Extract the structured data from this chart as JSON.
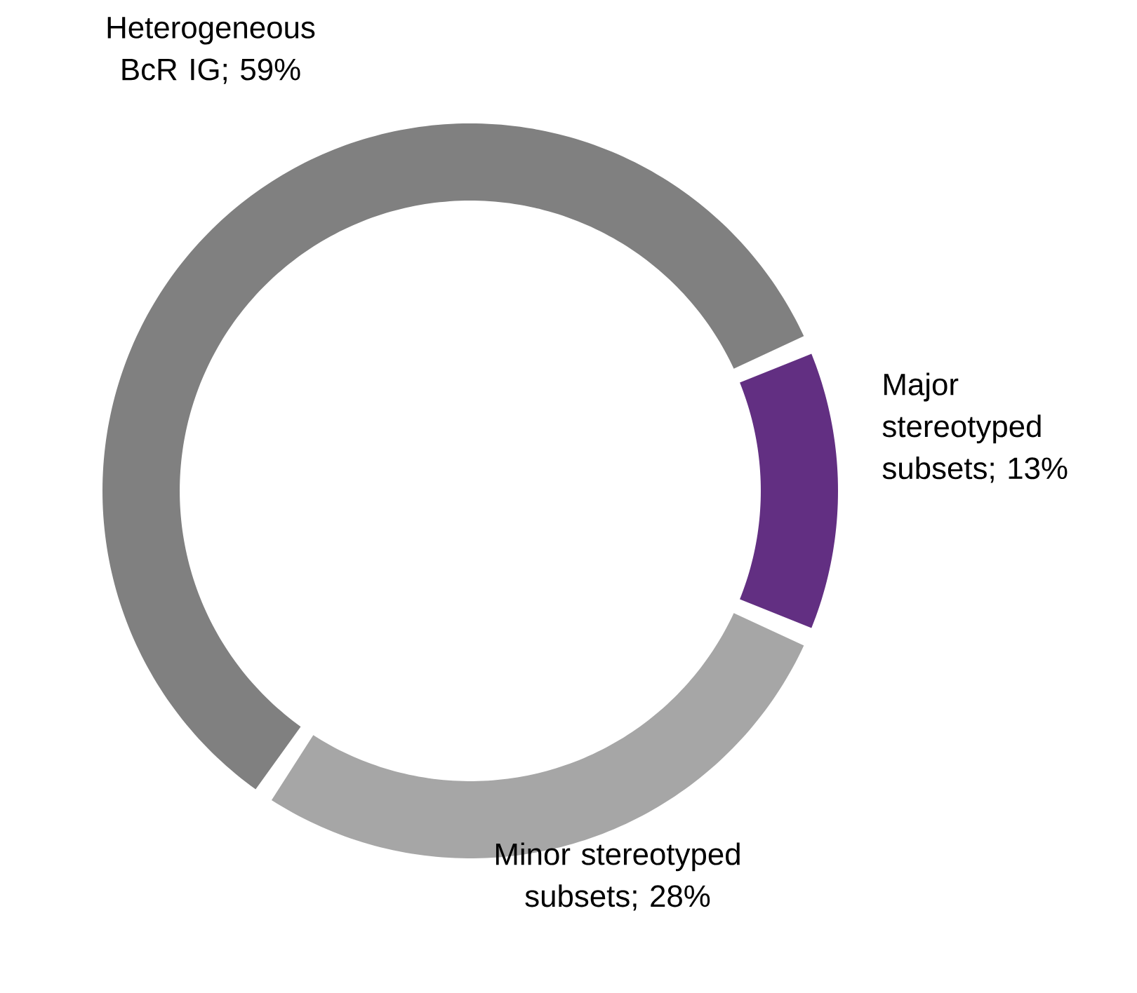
{
  "chart_data": {
    "type": "donut",
    "categories": [
      "Heterogeneous BcR IG; 59%",
      "Major stereotyped subsets; 13%",
      "Minor stereotyped subsets; 28%"
    ],
    "values": [
      59,
      13,
      28
    ],
    "colors": [
      "#808080",
      "#622f82",
      "#a6a6a6"
    ]
  }
}
